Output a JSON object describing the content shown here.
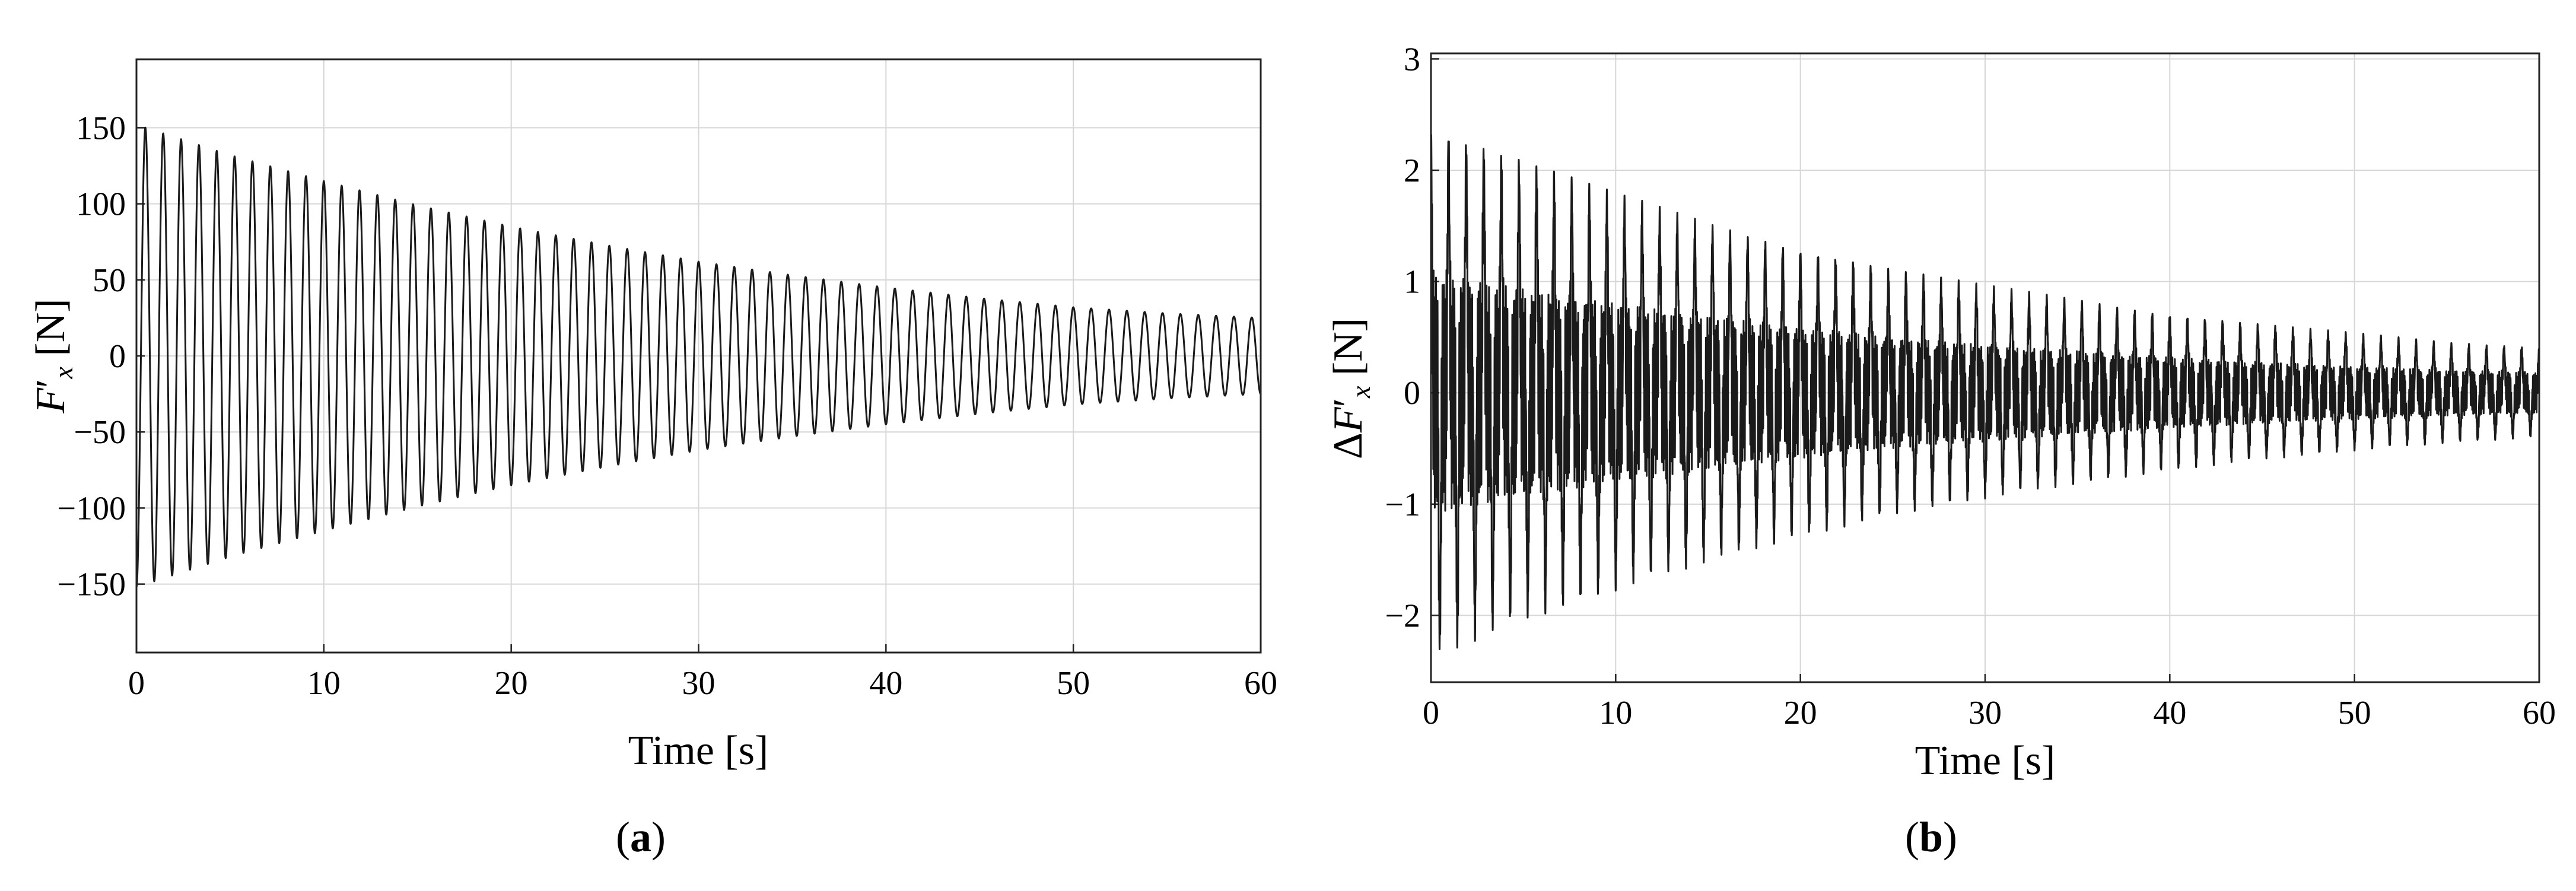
{
  "chart_data": [
    {
      "type": "line",
      "panel_label": "a",
      "xlabel": "Time [s]",
      "ylabel": "F′x [N]",
      "xlim": [
        0,
        60
      ],
      "ylim": [
        -195,
        195
      ],
      "xticks": [
        0,
        10,
        20,
        30,
        40,
        50,
        60
      ],
      "yticks": [
        -150,
        -100,
        -50,
        0,
        50,
        100,
        150
      ],
      "ytick_labels": [
        "−150",
        "−100",
        "−50",
        "0",
        "50",
        "100",
        "150"
      ],
      "grid": true,
      "series": [
        {
          "signal": "damped sinusoid",
          "frequency_hz": 1.05,
          "amplitude_envelope": {
            "t": [
              0,
              5,
              10,
              15,
              20,
              25,
              30,
              35,
              40,
              45,
              50,
              55,
              60
            ],
            "amplitude": [
              152,
              132,
              115,
              99,
              85,
              73,
              62,
              53,
              45,
              38,
              32,
              28,
              25
            ]
          }
        }
      ]
    },
    {
      "type": "line",
      "panel_label": "b",
      "xlabel": "Time [s]",
      "ylabel": "ΔF′x [N]",
      "xlim": [
        0,
        60
      ],
      "ylim": [
        -2.6,
        3.05
      ],
      "xticks": [
        0,
        10,
        20,
        30,
        40,
        50,
        60
      ],
      "yticks": [
        -2,
        -1,
        0,
        1,
        2,
        3
      ],
      "ytick_labels": [
        "−2",
        "−1",
        "0",
        "1",
        "2",
        "3"
      ],
      "grid": true,
      "series": [
        {
          "signal": "dense high-frequency oscillation with decaying envelope",
          "peak_frequency_hz": 1.05,
          "amplitude_envelope": {
            "t": [
              0,
              5,
              10,
              15,
              20,
              25,
              30,
              35,
              40,
              45,
              50,
              55,
              60
            ],
            "upper": [
              2.45,
              2.1,
              1.8,
              1.55,
              1.32,
              1.12,
              0.97,
              0.85,
              0.72,
              0.62,
              0.54,
              0.46,
              0.42
            ],
            "lower": [
              -2.4,
              -2.05,
              -1.78,
              -1.52,
              -1.3,
              -1.1,
              -0.95,
              -0.82,
              -0.7,
              -0.6,
              -0.52,
              -0.45,
              -0.4
            ]
          }
        }
      ]
    }
  ]
}
